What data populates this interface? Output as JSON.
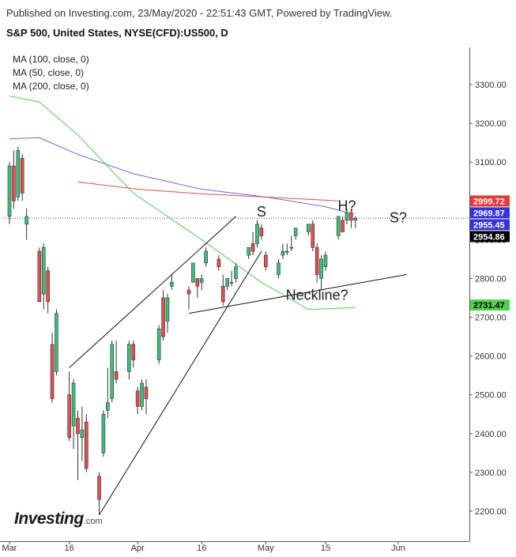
{
  "header": {
    "published": "Published on Investing.com, 23/May/2020 - 22:51:43 GMT, Powered by TradingView.",
    "symbol": "S&P 500, United States, NYSE(CFD):US500, D"
  },
  "indicators": [
    {
      "label": "MA (100, close, 0)",
      "color": "#6a6ae0"
    },
    {
      "label": "MA (50, close, 0)",
      "color": "#4ed14e"
    },
    {
      "label": "MA (200, close, 0)",
      "color": "#e05050"
    }
  ],
  "brand": {
    "name": "Investing",
    "suffix": ".com"
  },
  "colors": {
    "up": "#3dbf7a",
    "down": "#e05050",
    "axis_line": "#555555",
    "trendline": "#111111"
  },
  "chart_data": {
    "type": "candlestick",
    "title": "S&P 500, United States, NYSE(CFD):US500, D",
    "ylim": [
      2130,
      3400
    ],
    "y_ticks": [
      2200,
      2300,
      2400,
      2500,
      2600,
      2700,
      2800,
      2900,
      3000,
      3100,
      3200,
      3300
    ],
    "y_tick_labels": [
      "2200.00",
      "2300.00",
      "2400.00",
      "2500.00",
      "2600.00",
      "2700.00",
      "2800.00",
      "2900.00",
      "3000.00",
      "3100.00",
      "3200.00",
      "3300.00"
    ],
    "x_tick_labels": [
      {
        "date": "2020-03-02",
        "label": "Mar"
      },
      {
        "date": "2020-03-16",
        "label": "16"
      },
      {
        "date": "2020-04-01",
        "label": "Apr"
      },
      {
        "date": "2020-04-16",
        "label": "16"
      },
      {
        "date": "2020-05-01",
        "label": "May"
      },
      {
        "date": "2020-05-15",
        "label": "15"
      },
      {
        "date": "2020-06-01",
        "label": "Jun"
      }
    ],
    "candles": [
      {
        "date": "2020-03-02",
        "open": 2960,
        "high": 3100,
        "low": 2940,
        "close": 3090
      },
      {
        "date": "2020-03-03",
        "open": 3090,
        "high": 3130,
        "low": 2980,
        "close": 3000
      },
      {
        "date": "2020-03-04",
        "open": 3010,
        "high": 3140,
        "low": 3000,
        "close": 3130
      },
      {
        "date": "2020-03-05",
        "open": 3110,
        "high": 3120,
        "low": 3000,
        "close": 3020
      },
      {
        "date": "2020-03-06",
        "open": 2940,
        "high": 2980,
        "low": 2900,
        "close": 2960
      },
      {
        "date": "2020-03-09",
        "open": 2870,
        "high": 2880,
        "low": 2740,
        "close": 2740
      },
      {
        "date": "2020-03-10",
        "open": 2760,
        "high": 2890,
        "low": 2720,
        "close": 2880
      },
      {
        "date": "2020-03-11",
        "open": 2820,
        "high": 2830,
        "low": 2710,
        "close": 2740
      },
      {
        "date": "2020-03-12",
        "open": 2630,
        "high": 2660,
        "low": 2480,
        "close": 2490
      },
      {
        "date": "2020-03-13",
        "open": 2560,
        "high": 2720,
        "low": 2550,
        "close": 2710
      },
      {
        "date": "2020-03-16",
        "open": 2500,
        "high": 2560,
        "low": 2380,
        "close": 2390
      },
      {
        "date": "2020-03-17",
        "open": 2420,
        "high": 2540,
        "low": 2360,
        "close": 2530
      },
      {
        "date": "2020-03-18",
        "open": 2440,
        "high": 2460,
        "low": 2280,
        "close": 2400
      },
      {
        "date": "2020-03-19",
        "open": 2390,
        "high": 2470,
        "low": 2330,
        "close": 2410
      },
      {
        "date": "2020-03-20",
        "open": 2430,
        "high": 2450,
        "low": 2300,
        "close": 2310
      },
      {
        "date": "2020-03-23",
        "open": 2290,
        "high": 2300,
        "low": 2190,
        "close": 2230
      },
      {
        "date": "2020-03-24",
        "open": 2350,
        "high": 2460,
        "low": 2340,
        "close": 2450
      },
      {
        "date": "2020-03-25",
        "open": 2460,
        "high": 2570,
        "low": 2440,
        "close": 2480
      },
      {
        "date": "2020-03-26",
        "open": 2490,
        "high": 2640,
        "low": 2480,
        "close": 2630
      },
      {
        "date": "2020-03-27",
        "open": 2560,
        "high": 2640,
        "low": 2530,
        "close": 2540
      },
      {
        "date": "2020-03-30",
        "open": 2560,
        "high": 2640,
        "low": 2540,
        "close": 2630
      },
      {
        "date": "2020-03-31",
        "open": 2630,
        "high": 2640,
        "low": 2570,
        "close": 2590
      },
      {
        "date": "2020-04-01",
        "open": 2510,
        "high": 2520,
        "low": 2450,
        "close": 2470
      },
      {
        "date": "2020-04-02",
        "open": 2470,
        "high": 2540,
        "low": 2460,
        "close": 2530
      },
      {
        "date": "2020-04-03",
        "open": 2520,
        "high": 2540,
        "low": 2450,
        "close": 2490
      },
      {
        "date": "2020-04-06",
        "open": 2590,
        "high": 2680,
        "low": 2580,
        "close": 2670
      },
      {
        "date": "2020-04-07",
        "open": 2750,
        "high": 2770,
        "low": 2640,
        "close": 2650
      },
      {
        "date": "2020-04-08",
        "open": 2690,
        "high": 2760,
        "low": 2660,
        "close": 2750
      },
      {
        "date": "2020-04-09",
        "open": 2780,
        "high": 2810,
        "low": 2770,
        "close": 2790
      },
      {
        "date": "2020-04-13",
        "open": 2770,
        "high": 2780,
        "low": 2720,
        "close": 2760
      },
      {
        "date": "2020-04-14",
        "open": 2790,
        "high": 2830,
        "low": 2790,
        "close": 2840
      },
      {
        "date": "2020-04-15",
        "open": 2800,
        "high": 2800,
        "low": 2750,
        "close": 2780
      },
      {
        "date": "2020-04-16",
        "open": 2790,
        "high": 2810,
        "low": 2770,
        "close": 2800
      },
      {
        "date": "2020-04-17",
        "open": 2840,
        "high": 2880,
        "low": 2830,
        "close": 2870
      },
      {
        "date": "2020-04-20",
        "open": 2850,
        "high": 2860,
        "low": 2820,
        "close": 2830
      },
      {
        "date": "2020-04-21",
        "open": 2780,
        "high": 2810,
        "low": 2730,
        "close": 2740
      },
      {
        "date": "2020-04-22",
        "open": 2780,
        "high": 2800,
        "low": 2770,
        "close": 2800
      },
      {
        "date": "2020-04-23",
        "open": 2790,
        "high": 2820,
        "low": 2780,
        "close": 2790
      },
      {
        "date": "2020-04-24",
        "open": 2800,
        "high": 2840,
        "low": 2790,
        "close": 2830
      },
      {
        "date": "2020-04-27",
        "open": 2860,
        "high": 2880,
        "low": 2850,
        "close": 2880
      },
      {
        "date": "2020-04-28",
        "open": 2890,
        "high": 2920,
        "low": 2860,
        "close": 2870
      },
      {
        "date": "2020-04-29",
        "open": 2890,
        "high": 2950,
        "low": 2880,
        "close": 2940
      },
      {
        "date": "2020-04-30",
        "open": 2930,
        "high": 2940,
        "low": 2900,
        "close": 2910
      },
      {
        "date": "2020-05-01",
        "open": 2860,
        "high": 2870,
        "low": 2820,
        "close": 2830
      },
      {
        "date": "2020-05-04",
        "open": 2810,
        "high": 2850,
        "low": 2800,
        "close": 2840
      },
      {
        "date": "2020-05-05",
        "open": 2860,
        "high": 2890,
        "low": 2850,
        "close": 2870
      },
      {
        "date": "2020-05-06",
        "open": 2870,
        "high": 2890,
        "low": 2860,
        "close": 2870
      },
      {
        "date": "2020-05-07",
        "open": 2880,
        "high": 2910,
        "low": 2870,
        "close": 2880
      },
      {
        "date": "2020-05-08",
        "open": 2910,
        "high": 2930,
        "low": 2900,
        "close": 2930
      },
      {
        "date": "2020-05-11",
        "open": 2920,
        "high": 2940,
        "low": 2910,
        "close": 2940
      },
      {
        "date": "2020-05-12",
        "open": 2940,
        "high": 2950,
        "low": 2870,
        "close": 2880
      },
      {
        "date": "2020-05-13",
        "open": 2880,
        "high": 2890,
        "low": 2790,
        "close": 2810
      },
      {
        "date": "2020-05-14",
        "open": 2800,
        "high": 2860,
        "low": 2770,
        "close": 2850
      },
      {
        "date": "2020-05-15",
        "open": 2830,
        "high": 2870,
        "low": 2820,
        "close": 2860
      },
      {
        "date": "2020-05-18",
        "open": 2910,
        "high": 2960,
        "low": 2900,
        "close": 2960
      },
      {
        "date": "2020-05-19",
        "open": 2950,
        "high": 2960,
        "low": 2920,
        "close": 2920
      },
      {
        "date": "2020-05-20",
        "open": 2950,
        "high": 2980,
        "low": 2940,
        "close": 2970
      },
      {
        "date": "2020-05-21",
        "open": 2970,
        "high": 2980,
        "low": 2930,
        "close": 2950
      },
      {
        "date": "2020-05-22",
        "open": 2950,
        "high": 2960,
        "low": 2930,
        "close": 2955
      }
    ],
    "moving_averages": [
      {
        "name": "MA (100, close, 0)",
        "color": "#6a6ae0",
        "points": [
          [
            "2020-03-02",
            3160
          ],
          [
            "2020-03-09",
            3163
          ],
          [
            "2020-03-18",
            3120
          ],
          [
            "2020-03-31",
            3070
          ],
          [
            "2020-04-16",
            3030
          ],
          [
            "2020-05-01",
            3010
          ],
          [
            "2020-05-15",
            2985
          ],
          [
            "2020-05-20",
            2970
          ]
        ]
      },
      {
        "name": "MA (50, close, 0)",
        "color": "#4ed14e",
        "points": [
          [
            "2020-03-02",
            3270
          ],
          [
            "2020-03-09",
            3255
          ],
          [
            "2020-03-18",
            3170
          ],
          [
            "2020-03-31",
            3020
          ],
          [
            "2020-04-16",
            2900
          ],
          [
            "2020-04-30",
            2790
          ],
          [
            "2020-05-11",
            2720
          ],
          [
            "2020-05-22",
            2725
          ]
        ]
      },
      {
        "name": "MA (200, close, 0)",
        "color": "#e05050",
        "points": [
          [
            "2020-03-18",
            3049
          ],
          [
            "2020-04-01",
            3030
          ],
          [
            "2020-04-16",
            3018
          ],
          [
            "2020-05-01",
            3010
          ],
          [
            "2020-05-18",
            3000
          ]
        ]
      }
    ],
    "price_labels": [
      {
        "value": 2999.72,
        "label": "2999.72",
        "bg": "#e53935",
        "fg": "#ffffff"
      },
      {
        "value": 2969.87,
        "label": "2969.87",
        "bg": "#3434d8",
        "fg": "#ffffff"
      },
      {
        "value": 2955.45,
        "label": "2955.45",
        "bg": "#3434d8",
        "fg": "#ffffff"
      },
      {
        "value": 2954.86,
        "label": "2954.86",
        "bg": "#000000",
        "fg": "#ffffff"
      },
      {
        "value": 2731.47,
        "label": "2731.47",
        "bg": "#4ed14e",
        "fg": "#000000"
      }
    ],
    "current_price": 2955.45,
    "trendlines": [
      {
        "from": [
          "2020-03-16",
          2570
        ],
        "to": [
          "2020-04-24",
          2960
        ]
      },
      {
        "from": [
          "2020-03-23",
          2190
        ],
        "to": [
          "2020-04-30",
          2870
        ]
      },
      {
        "from": [
          "2020-04-13",
          2710
        ],
        "to": [
          "2020-06-03",
          2810
        ]
      }
    ],
    "annotations": [
      {
        "text": "S",
        "date": "2020-04-30",
        "value": 2960
      },
      {
        "text": "H?",
        "date": "2020-05-20",
        "value": 2975
      },
      {
        "text": "S?",
        "date": "2020-06-01",
        "value": 2945
      },
      {
        "text": "Neckline?",
        "date": "2020-05-13",
        "value": 2745
      }
    ]
  }
}
